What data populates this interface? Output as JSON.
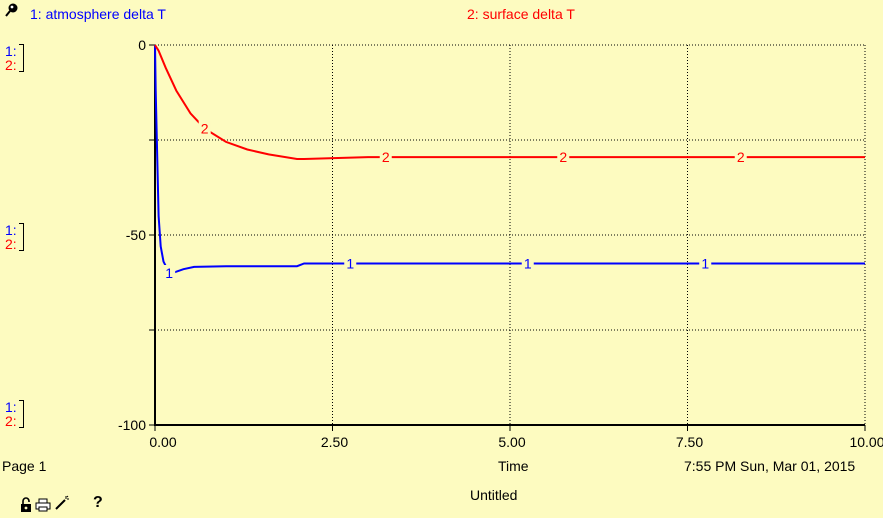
{
  "legend": [
    {
      "label": "1: atmosphere delta T",
      "color": "#0000ff"
    },
    {
      "label": "2: surface delta T",
      "color": "#ff0000"
    }
  ],
  "scale_tags": {
    "tag1": "1:",
    "tag2": "2:"
  },
  "footer": {
    "page": "Page 1",
    "xlabel": "Time",
    "timestamp": "7:55 PM   Sun, Mar 01, 2015",
    "model_name": "Untitled"
  },
  "toolbar": {
    "icons": [
      "lock-icon",
      "printer-icon",
      "magic-wand-icon",
      "help-icon"
    ],
    "help_glyph": "?"
  },
  "chart_data": {
    "type": "line",
    "xlabel": "Time",
    "ylabel": "",
    "xlim": [
      0,
      10
    ],
    "ylim": [
      -100,
      0
    ],
    "x_ticks": [
      0,
      2.5,
      5,
      7.5,
      10
    ],
    "x_tick_labels": [
      "0.00",
      "2.50",
      "5.00",
      "7.50",
      "10.00"
    ],
    "y_ticks": [
      0,
      -50,
      -100
    ],
    "y_tick_labels": [
      "0",
      "-50",
      "-100"
    ],
    "grid": true,
    "series": [
      {
        "name": "1: atmosphere delta T",
        "marker": "1",
        "color": "#0000ff",
        "marker_x": [
          0.2,
          2.75,
          5.25,
          7.75
        ],
        "points": [
          [
            0,
            0
          ],
          [
            0.01,
            -12
          ],
          [
            0.03,
            -28
          ],
          [
            0.05,
            -45
          ],
          [
            0.08,
            -53
          ],
          [
            0.12,
            -57
          ],
          [
            0.16,
            -58.5
          ],
          [
            0.2,
            -60
          ],
          [
            0.28,
            -59.8
          ],
          [
            0.4,
            -59
          ],
          [
            0.55,
            -58.4
          ],
          [
            1.0,
            -58.2
          ],
          [
            2.0,
            -58.2
          ],
          [
            2.1,
            -57.5
          ],
          [
            3.0,
            -57.5
          ],
          [
            10.0,
            -57.5
          ]
        ]
      },
      {
        "name": "2: surface delta T",
        "marker": "2",
        "color": "#ff0000",
        "marker_x": [
          0.7,
          3.25,
          5.75,
          8.25
        ],
        "points": [
          [
            0.0,
            0
          ],
          [
            0.05,
            -1.5
          ],
          [
            0.15,
            -6
          ],
          [
            0.3,
            -12
          ],
          [
            0.5,
            -18
          ],
          [
            0.7,
            -22
          ],
          [
            1.0,
            -25.5
          ],
          [
            1.3,
            -27.5
          ],
          [
            1.6,
            -28.8
          ],
          [
            2.0,
            -30
          ],
          [
            2.1,
            -30
          ],
          [
            3.0,
            -29.5
          ],
          [
            10.0,
            -29.5
          ]
        ]
      }
    ]
  }
}
